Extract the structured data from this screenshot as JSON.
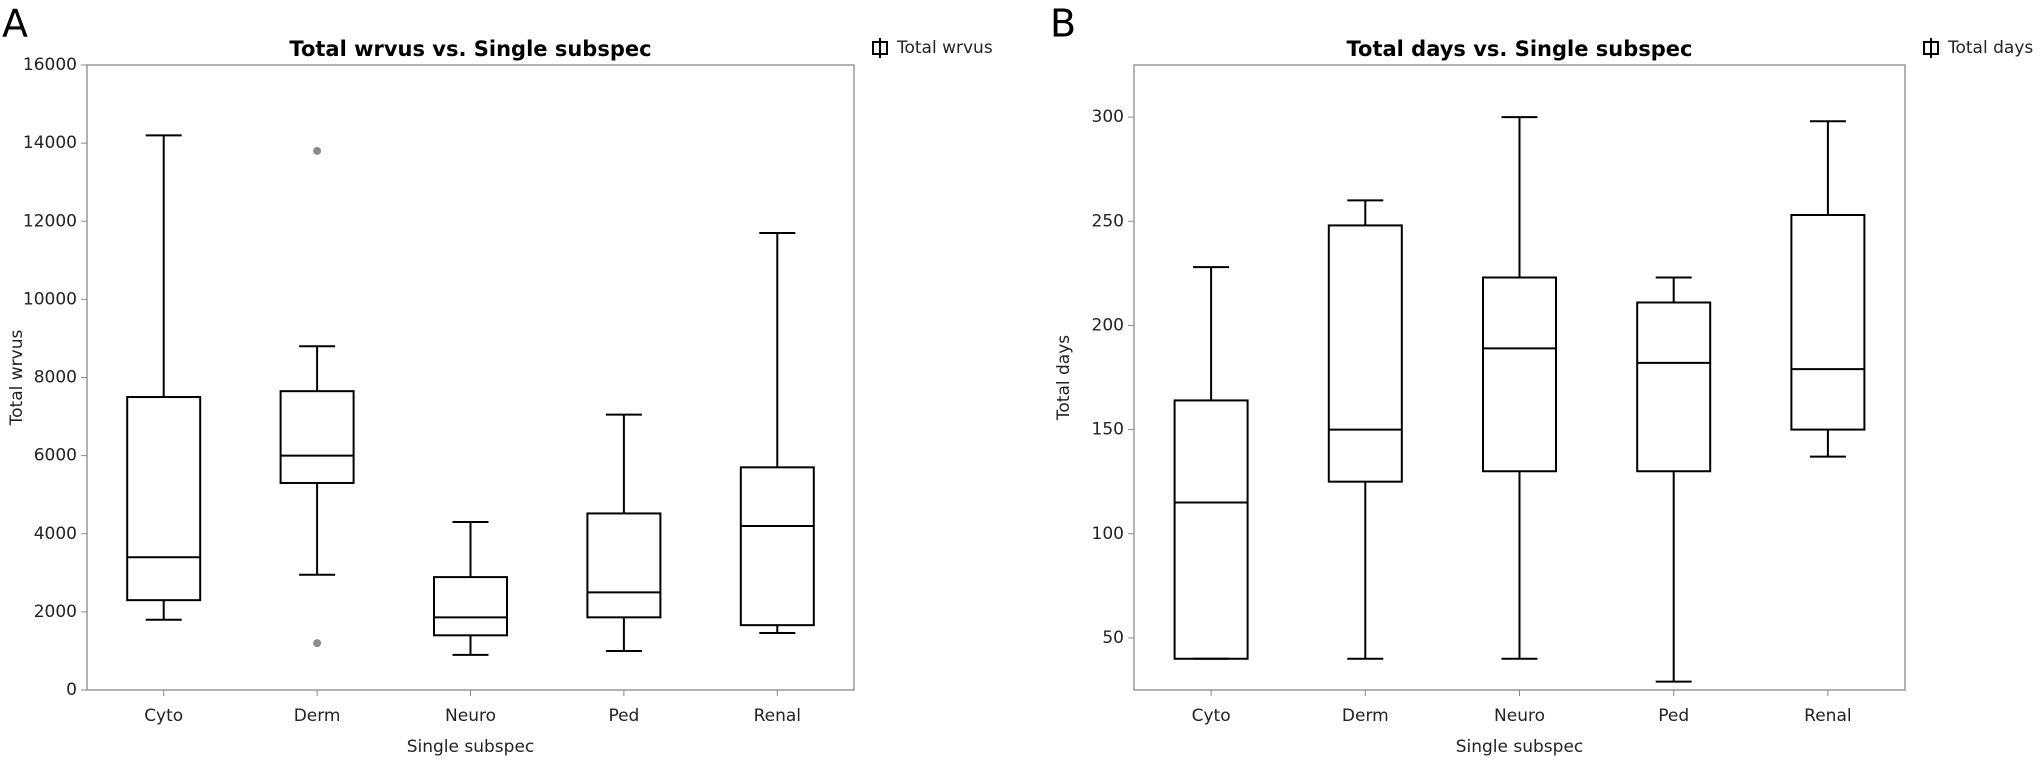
{
  "chart_data": [
    {
      "type": "box",
      "label": "A",
      "title": "Total wrvus vs. Single subspec",
      "xlabel": "Single subspec",
      "ylabel": "Total wrvus",
      "categories": [
        "Cyto",
        "Derm",
        "Neuro",
        "Ped",
        "Renal"
      ],
      "series": [
        {
          "name": "Total wrvus",
          "color": "#000000",
          "min": [
            1800,
            2950,
            900,
            1000,
            1460
          ],
          "q1": [
            2300,
            5300,
            1400,
            1860,
            1660
          ],
          "median": [
            3400,
            6000,
            1860,
            2500,
            4200
          ],
          "q3": [
            7500,
            7650,
            2890,
            4520,
            5700
          ],
          "max": [
            14200,
            8800,
            4300,
            7050,
            11700
          ],
          "outliers": [
            [],
            [
              13800,
              1200
            ],
            [],
            [],
            []
          ]
        }
      ],
      "outlier_color": "#8c8c8c",
      "ylim": [
        0,
        16000
      ],
      "yticks": [
        0,
        2000,
        4000,
        6000,
        8000,
        10000,
        12000,
        14000,
        16000
      ]
    },
    {
      "type": "box",
      "label": "B",
      "title": "Total days vs. Single subspec",
      "xlabel": "Single subspec",
      "ylabel": "Total days",
      "categories": [
        "Cyto",
        "Derm",
        "Neuro",
        "Ped",
        "Renal"
      ],
      "series": [
        {
          "name": "Total days",
          "color": "#000000",
          "min": [
            40,
            40,
            40,
            29,
            137
          ],
          "q1": [
            40,
            125,
            130,
            130,
            150
          ],
          "median": [
            115,
            150,
            189,
            182,
            179
          ],
          "q3": [
            164,
            248,
            223,
            211,
            253
          ],
          "max": [
            228,
            260,
            300,
            223,
            298
          ],
          "outliers": [
            [],
            [],
            [],
            [],
            []
          ]
        }
      ],
      "outlier_color": "#8c8c8c",
      "ylim": [
        25,
        325
      ],
      "yticks": [
        50,
        100,
        150,
        200,
        250,
        300
      ]
    }
  ]
}
